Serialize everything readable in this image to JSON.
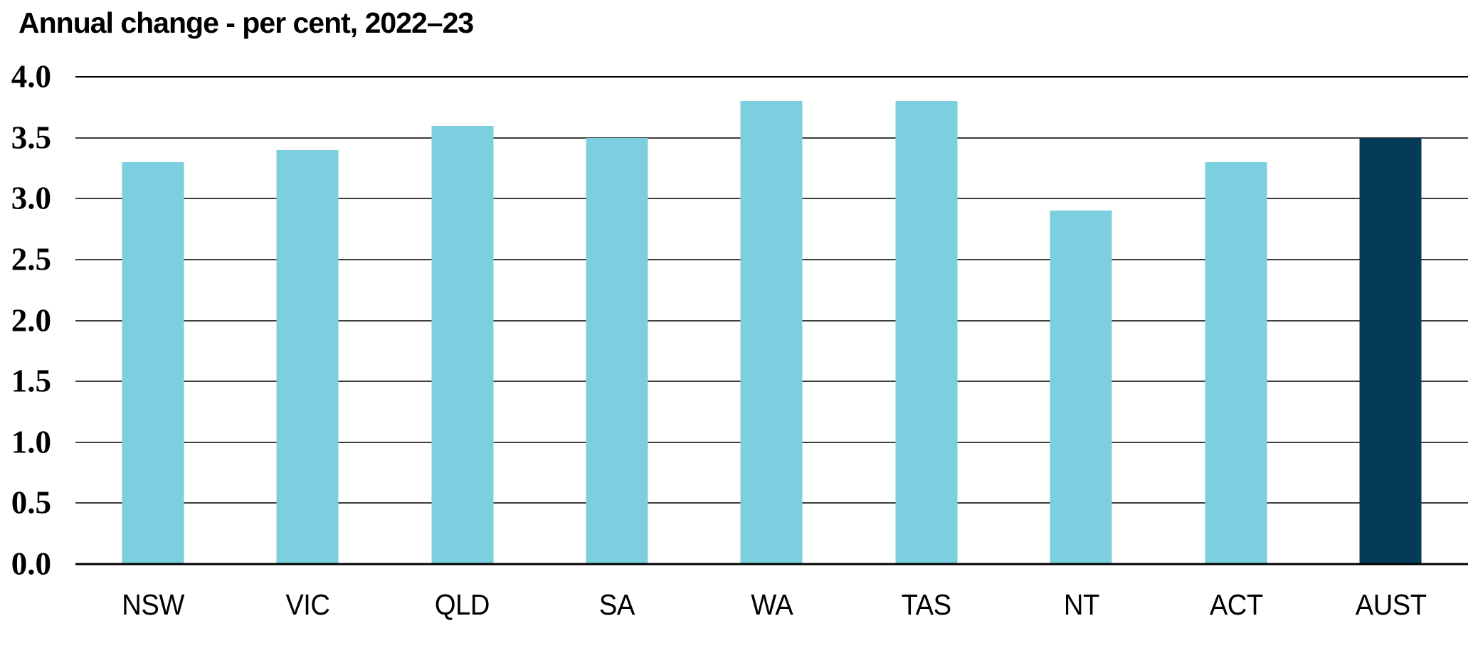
{
  "colors": {
    "background": "#FFFFFF",
    "text": "#000000",
    "bar": "#7CCFDF",
    "highlight_bar": "#053B57",
    "grid": "#3D3D3D",
    "axis": "#000000"
  },
  "chart_data": {
    "type": "bar",
    "title": "Annual change - per cent, 2022–23",
    "categories": [
      "NSW",
      "VIC",
      "QLD",
      "SA",
      "WA",
      "TAS",
      "NT",
      "ACT",
      "AUST"
    ],
    "values": [
      3.3,
      3.4,
      3.6,
      3.5,
      3.8,
      3.8,
      2.9,
      3.3,
      3.5
    ],
    "highlight_category": "AUST",
    "xlabel": "",
    "ylabel": "",
    "ylim": [
      0.0,
      4.0
    ],
    "ytick_step": 0.5,
    "yticks": [
      "4.0",
      "3.5",
      "3.0",
      "2.5",
      "2.0",
      "1.5",
      "1.0",
      "0.5",
      "0.0"
    ],
    "grid": true,
    "legend": false
  }
}
